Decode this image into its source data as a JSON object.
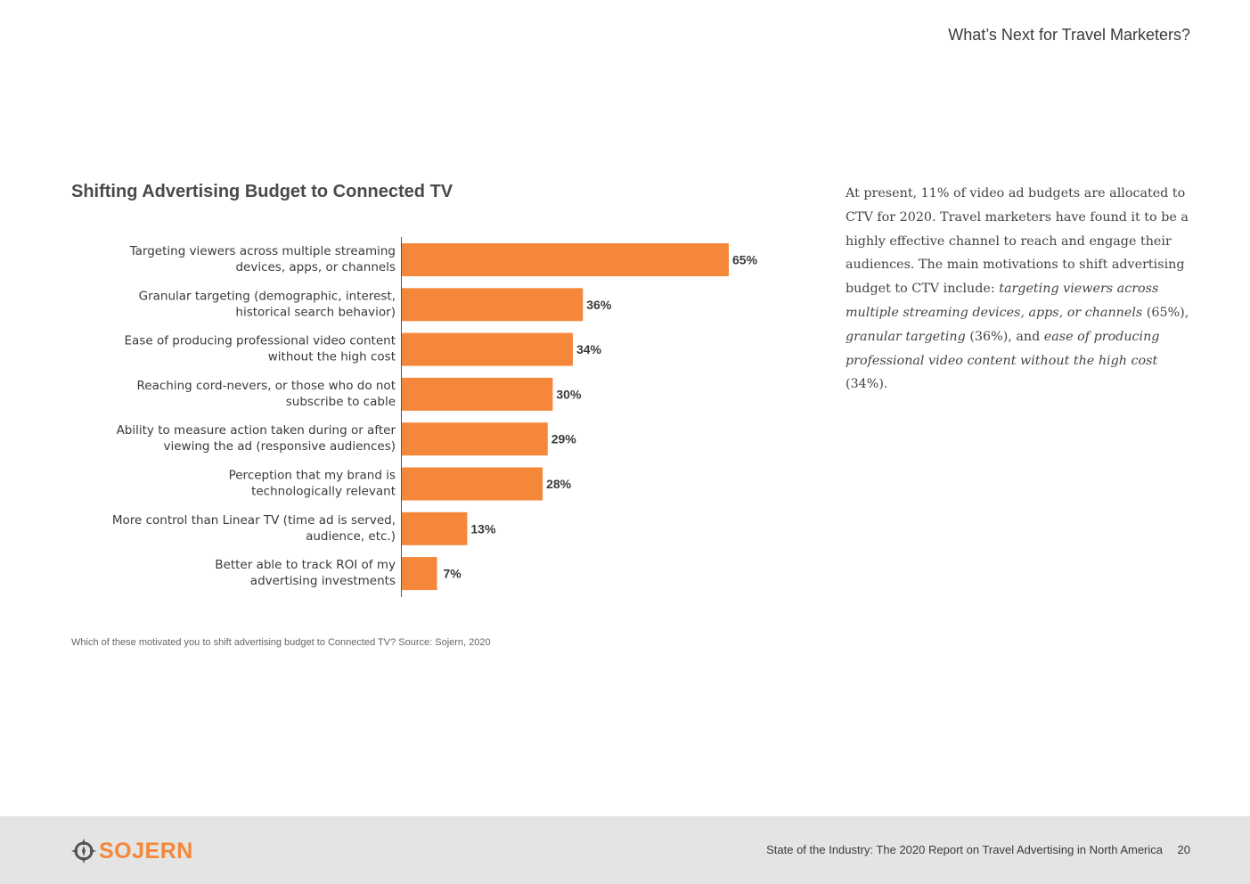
{
  "header": {
    "title": "What’s Next for Travel Marketers?"
  },
  "chart_data": {
    "type": "bar",
    "orientation": "horizontal",
    "title": "Shifting Advertising Budget to Connected TV",
    "categories": [
      [
        "Targeting viewers across multiple streaming",
        "devices, apps, or channels"
      ],
      [
        "Granular targeting (demographic, interest,",
        "historical search behavior)"
      ],
      [
        "Ease of producing professional video content",
        "without the high cost"
      ],
      [
        "Reaching cord-nevers, or those who do not",
        "subscribe to cable"
      ],
      [
        "Ability to measure action taken during or after",
        "viewing the ad (responsive audiences)"
      ],
      [
        "Perception that my brand is",
        "technologically relevant"
      ],
      [
        "More control than Linear TV (time ad is served,",
        "audience, etc.)"
      ],
      [
        "Better able to track ROI of my",
        "advertising investments"
      ]
    ],
    "values": [
      65,
      36,
      34,
      30,
      29,
      28,
      13,
      7
    ],
    "value_labels": [
      "65%",
      "36%",
      "34%",
      "30%",
      "29%",
      "28%",
      "13%",
      "7%"
    ],
    "unit": "%",
    "xlim": [
      0,
      65
    ],
    "grid": false,
    "bar_color": "#f5873a",
    "source": "Which of these motivated you to shift advertising budget to Connected TV? Source: Sojern, 2020"
  },
  "side_text": {
    "intro": "At present, 11% of video ad budgets are allocated to CTV for 2020. Travel marketers have found it to be a highly effective channel to reach and engage their audiences. The main motivations to shift advertising budget to CTV include: ",
    "em1": "targeting viewers across multiple streaming devices, apps, or channels",
    "p1": " (65%), ",
    "em2": "granular targeting",
    "p2": " (36%), and ",
    "em3": "ease of producing professional video content without the high cost",
    "p3": " (34%)."
  },
  "footer": {
    "logo_text": "SOJERN",
    "logo_icon": "compass-icon",
    "report_title": "State of the Industry: The 2020 Report on Travel Advertising in North America",
    "page_number": "20"
  },
  "colors": {
    "accent": "#f5873a",
    "footer_bg": "#e4e4e4"
  }
}
